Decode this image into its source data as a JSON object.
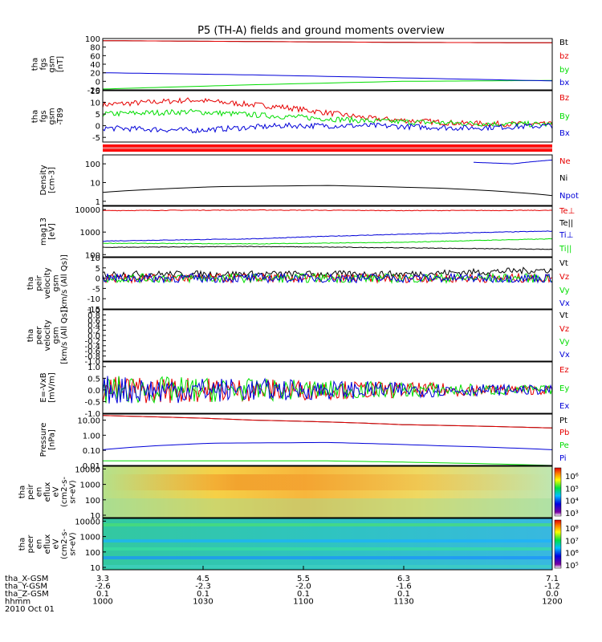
{
  "title": "P5 (TH-A) fields and ground moments overview",
  "colors": {
    "black": "#000000",
    "red": "#e60000",
    "green": "#00dd00",
    "blue": "#0000d8"
  },
  "chart_data": [
    {
      "type": "line",
      "id": "fgs_gsm",
      "ylabel": [
        "tha",
        "fgs",
        "gsm",
        "[nT]"
      ],
      "ylim": [
        -20,
        100
      ],
      "ticks": [
        "100",
        "80",
        "60",
        "40",
        "20",
        "0",
        "-20"
      ],
      "series": [
        {
          "name": "Bt",
          "color": "#000000",
          "values": [
            95,
            93,
            91,
            90
          ]
        },
        {
          "name": "bz",
          "color": "#e60000",
          "values": [
            95,
            93,
            91,
            90
          ]
        },
        {
          "name": "by",
          "color": "#00dd00",
          "values": [
            -18,
            -8,
            0,
            2
          ]
        },
        {
          "name": "bx",
          "color": "#0000d8",
          "values": [
            20,
            15,
            8,
            1
          ]
        }
      ]
    },
    {
      "type": "line",
      "id": "fgs_t89",
      "ylabel": [
        "tha",
        "fgs",
        "gsm",
        "-T89"
      ],
      "ylim": [
        -7,
        15
      ],
      "ticks": [
        "15",
        "10",
        "5",
        "0",
        "-5"
      ],
      "series": [
        {
          "name": "Bz",
          "color": "#e60000",
          "values": [
            9,
            11,
            8,
            3,
            1,
            0.5
          ]
        },
        {
          "name": "By",
          "color": "#00dd00",
          "values": [
            5,
            6,
            4,
            2,
            1,
            0.5
          ]
        },
        {
          "name": "Bx",
          "color": "#0000d8",
          "values": [
            -1,
            -2,
            0,
            0,
            -1,
            0
          ]
        }
      ]
    },
    {
      "type": "line",
      "id": "density",
      "scale": "log",
      "ylabel": [
        "Density",
        "[cm-3]"
      ],
      "ylim": [
        0.6,
        300
      ],
      "ticks": [
        "100",
        "10",
        "1"
      ],
      "series": [
        {
          "name": "Ne",
          "color": "#e60000",
          "values": []
        },
        {
          "name": "Ni",
          "color": "#000000",
          "values": [
            3,
            6,
            7,
            5,
            2
          ]
        },
        {
          "name": "Npot",
          "color": "#0000d8",
          "values": [
            120,
            100,
            160
          ]
        }
      ]
    },
    {
      "type": "line",
      "id": "mag_temp",
      "scale": "log",
      "ylabel": [
        "mag13",
        "[eV]"
      ],
      "ylim": [
        80,
        14000
      ],
      "ticks": [
        "10000",
        "1000",
        "100"
      ],
      "series": [
        {
          "name": "Te⊥",
          "color": "#e60000",
          "values": [
            9000,
            9500,
            9000,
            9200
          ]
        },
        {
          "name": "Te||",
          "color": "#000000",
          "values": [
            210,
            230,
            200,
            170
          ]
        },
        {
          "name": "Ti⊥",
          "color": "#0000d8",
          "values": [
            400,
            500,
            800,
            1100
          ]
        },
        {
          "name": "Ti||",
          "color": "#00dd00",
          "values": [
            320,
            300,
            350,
            500
          ]
        }
      ]
    },
    {
      "type": "line",
      "id": "peir_velocity",
      "ylabel": [
        "tha",
        "peir",
        "velocity",
        "gsm",
        "[km/s (All Qs)]"
      ],
      "ylim": [
        -15,
        10
      ],
      "ticks": [
        "10",
        "5",
        "0",
        "-5",
        "-10",
        "-15"
      ],
      "series": [
        {
          "name": "Vt",
          "color": "#000000",
          "values": [
            2,
            2,
            2,
            4
          ]
        },
        {
          "name": "Vz",
          "color": "#e60000",
          "values": [
            0,
            0,
            0,
            0
          ]
        },
        {
          "name": "Vy",
          "color": "#00dd00",
          "values": [
            0,
            0,
            0,
            0
          ]
        },
        {
          "name": "Vx",
          "color": "#0000d8",
          "values": [
            0,
            0,
            0,
            0
          ]
        }
      ]
    },
    {
      "type": "line",
      "id": "peer_velocity",
      "ylabel": [
        "tha",
        "peer",
        "velocity",
        "gsm",
        "[km/s (All Qs)]"
      ],
      "ylim": [
        -1,
        1
      ],
      "ticks": [
        "1.0",
        "0.8",
        "0.6",
        "0.4",
        "0.2",
        "0.0",
        "-0.2",
        "-0.4",
        "-0.6",
        "-0.8",
        "-1.0"
      ],
      "series": [
        {
          "name": "Vt",
          "color": "#000000",
          "values": []
        },
        {
          "name": "Vz",
          "color": "#e60000",
          "values": []
        },
        {
          "name": "Vy",
          "color": "#00dd00",
          "values": []
        },
        {
          "name": "Vx",
          "color": "#0000d8",
          "values": []
        }
      ]
    },
    {
      "type": "line",
      "id": "efield",
      "ylabel": [
        "E=-VxB",
        "[mV/m]"
      ],
      "ylim": [
        -1,
        1.2
      ],
      "ticks": [
        "1.0",
        "0.5",
        "0.0",
        "-0.5",
        "-1.0"
      ],
      "series": [
        {
          "name": "Ez",
          "color": "#e60000",
          "values": [
            0,
            0,
            0
          ]
        },
        {
          "name": "Ey",
          "color": "#00dd00",
          "values": [
            0,
            0,
            0
          ]
        },
        {
          "name": "Ex",
          "color": "#0000d8",
          "values": [
            0,
            0,
            0
          ]
        }
      ]
    },
    {
      "type": "line",
      "id": "pressure",
      "scale": "log",
      "ylabel": [
        "Pressure",
        "[nPa]"
      ],
      "ylim": [
        0.01,
        25
      ],
      "ticks": [
        "10.00",
        "1.00",
        "0.10",
        "0.01"
      ],
      "series": [
        {
          "name": "Pt",
          "color": "#000000",
          "values": [
            20,
            10,
            5,
            3
          ]
        },
        {
          "name": "Pb",
          "color": "#e60000",
          "values": [
            20,
            10,
            5,
            3
          ]
        },
        {
          "name": "Pe",
          "color": "#00dd00",
          "values": [
            0.02,
            0.02,
            0.01
          ]
        },
        {
          "name": "Pi",
          "color": "#0000d8",
          "values": [
            0.11,
            0.3,
            0.33,
            0.2,
            0.11
          ]
        }
      ]
    },
    {
      "type": "heatmap",
      "id": "peir_en_eflux",
      "scale": "log",
      "ylabel": [
        "tha",
        "peir",
        "en",
        "eflux",
        "eV",
        "(cm2-s-",
        "sr-eV)"
      ],
      "ylim": [
        7,
        15000
      ],
      "ticks": [
        "10000",
        "1000",
        "100",
        "10"
      ],
      "colorbar_ticks": [
        "10⁶",
        "10⁵",
        "10⁴",
        "10³"
      ]
    },
    {
      "type": "heatmap",
      "id": "peer_en_eflux",
      "scale": "log",
      "ylabel": [
        "tha",
        "peer",
        "en",
        "eflux",
        "eV",
        "(cm2-s-",
        "sr-eV)"
      ],
      "ylim": [
        7,
        15000
      ],
      "ticks": [
        "10000",
        "1000",
        "100",
        "10"
      ],
      "colorbar_ticks": [
        "10⁸",
        "10⁷",
        "10⁶",
        "10⁵"
      ]
    }
  ],
  "x_axis": {
    "rows": [
      {
        "label": "tha_X-GSM",
        "values": [
          "3.3",
          "4.5",
          "5.5",
          "6.3",
          "7.1"
        ]
      },
      {
        "label": "tha_Y-GSM",
        "values": [
          "-2.6",
          "-2.3",
          "-2.0",
          "-1.6",
          "-1.2"
        ]
      },
      {
        "label": "tha_Z-GSM",
        "values": [
          "0.1",
          "0.1",
          "0.1",
          "0.1",
          "0.0"
        ]
      },
      {
        "label": "hhmm",
        "values": [
          "1000",
          "1030",
          "1100",
          "1130",
          "1200"
        ]
      }
    ],
    "date": "2010 Oct 01"
  }
}
